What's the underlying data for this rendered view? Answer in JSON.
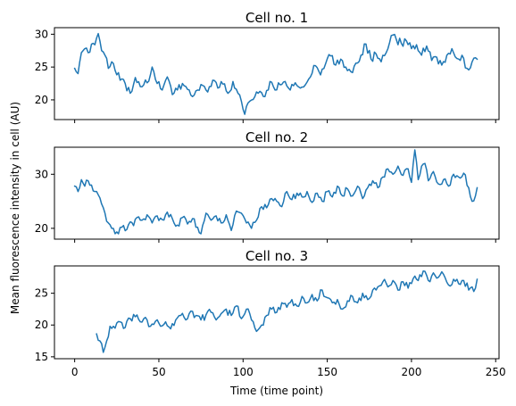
{
  "figure": {
    "xlabel": "Time (time point)",
    "ylabel": "Mean fluorescence intensity in cell (AU)",
    "series_color": "#1f77b4"
  },
  "chart_data": [
    {
      "type": "line",
      "title": "Cell no. 1",
      "xlim": [
        -12,
        252
      ],
      "ylim": [
        17,
        31
      ],
      "yticks": [
        20,
        25,
        30
      ],
      "xticks": [
        0,
        50,
        100,
        150,
        200,
        250
      ],
      "x_tick_labels_shown": false,
      "x_start": 0,
      "x_end": 239,
      "series": [
        {
          "name": "Cell no. 1",
          "keypoints": [
            [
              0,
              24.8
            ],
            [
              2,
              24.0
            ],
            [
              4,
              27.2
            ],
            [
              6,
              27.8
            ],
            [
              8,
              27.2
            ],
            [
              10,
              28.5
            ],
            [
              12,
              28.4
            ],
            [
              14,
              30.1
            ],
            [
              16,
              27.5
            ],
            [
              18,
              26.8
            ],
            [
              20,
              24.8
            ],
            [
              22,
              25.8
            ],
            [
              24,
              24.5
            ],
            [
              27,
              23.0
            ],
            [
              30,
              22.5
            ],
            [
              33,
              21.0
            ],
            [
              36,
              23.4
            ],
            [
              40,
              22.0
            ],
            [
              43,
              22.6
            ],
            [
              46,
              25.0
            ],
            [
              49,
              22.5
            ],
            [
              52,
              21.5
            ],
            [
              55,
              23.5
            ],
            [
              58,
              20.8
            ],
            [
              61,
              21.5
            ],
            [
              64,
              22.5
            ],
            [
              67,
              21.6
            ],
            [
              70,
              20.5
            ],
            [
              73,
              21.5
            ],
            [
              76,
              22.2
            ],
            [
              79,
              21.2
            ],
            [
              82,
              23.0
            ],
            [
              85,
              21.8
            ],
            [
              88,
              22.4
            ],
            [
              91,
              21.0
            ],
            [
              94,
              22.8
            ],
            [
              97,
              21.0
            ],
            [
              99,
              19.8
            ],
            [
              101,
              17.8
            ],
            [
              104,
              19.8
            ],
            [
              107,
              20.5
            ],
            [
              110,
              21.3
            ],
            [
              113,
              20.5
            ],
            [
              116,
              22.8
            ],
            [
              119,
              21.5
            ],
            [
              122,
              22.3
            ],
            [
              125,
              22.8
            ],
            [
              128,
              21.5
            ],
            [
              131,
              22.6
            ],
            [
              134,
              21.8
            ],
            [
              137,
              22.3
            ],
            [
              140,
              23.5
            ],
            [
              143,
              25.2
            ],
            [
              146,
              23.8
            ],
            [
              149,
              25.5
            ],
            [
              152,
              26.7
            ],
            [
              155,
              25.3
            ],
            [
              158,
              26.2
            ],
            [
              161,
              25.0
            ],
            [
              164,
              24.3
            ],
            [
              167,
              25.6
            ],
            [
              170,
              26.8
            ],
            [
              173,
              28.5
            ],
            [
              176,
              26.2
            ],
            [
              179,
              27.0
            ],
            [
              182,
              25.8
            ],
            [
              185,
              27.2
            ],
            [
              188,
              29.8
            ],
            [
              191,
              29.2
            ],
            [
              194,
              28.6
            ],
            [
              197,
              29.0
            ],
            [
              200,
              27.8
            ],
            [
              203,
              28.4
            ],
            [
              206,
              26.8
            ],
            [
              209,
              28.2
            ],
            [
              212,
              26.0
            ],
            [
              215,
              26.5
            ],
            [
              218,
              25.3
            ],
            [
              221,
              26.8
            ],
            [
              224,
              27.8
            ],
            [
              227,
              26.3
            ],
            [
              230,
              26.8
            ],
            [
              233,
              24.8
            ],
            [
              236,
              25.8
            ],
            [
              239,
              26.2
            ]
          ]
        }
      ]
    },
    {
      "type": "line",
      "title": "Cell no. 2",
      "xlim": [
        -12,
        252
      ],
      "ylim": [
        18,
        35
      ],
      "yticks": [
        20,
        30
      ],
      "xticks": [
        0,
        50,
        100,
        150,
        200,
        250
      ],
      "x_tick_labels_shown": false,
      "x_start": 0,
      "x_end": 239,
      "series": [
        {
          "name": "Cell no. 2",
          "keypoints": [
            [
              0,
              27.8
            ],
            [
              2,
              26.8
            ],
            [
              4,
              29.0
            ],
            [
              6,
              27.8
            ],
            [
              8,
              28.8
            ],
            [
              10,
              28.0
            ],
            [
              12,
              26.8
            ],
            [
              14,
              26.2
            ],
            [
              16,
              24.5
            ],
            [
              18,
              22.8
            ],
            [
              20,
              21.0
            ],
            [
              22,
              20.0
            ],
            [
              24,
              19.0
            ],
            [
              26,
              19.0
            ],
            [
              28,
              20.2
            ],
            [
              31,
              19.8
            ],
            [
              33,
              21.2
            ],
            [
              35,
              20.5
            ],
            [
              37,
              22.0
            ],
            [
              40,
              21.5
            ],
            [
              43,
              22.5
            ],
            [
              46,
              21.0
            ],
            [
              49,
              22.3
            ],
            [
              52,
              21.6
            ],
            [
              55,
              23.0
            ],
            [
              58,
              21.8
            ],
            [
              61,
              20.6
            ],
            [
              64,
              22.0
            ],
            [
              67,
              20.8
            ],
            [
              70,
              21.8
            ],
            [
              73,
              20.2
            ],
            [
              75,
              19.0
            ],
            [
              78,
              22.8
            ],
            [
              81,
              21.5
            ],
            [
              84,
              22.3
            ],
            [
              87,
              21.0
            ],
            [
              90,
              22.5
            ],
            [
              93,
              19.6
            ],
            [
              96,
              23.2
            ],
            [
              99,
              22.8
            ],
            [
              102,
              21.0
            ],
            [
              105,
              20.0
            ],
            [
              108,
              21.5
            ],
            [
              111,
              24.0
            ],
            [
              114,
              23.8
            ],
            [
              117,
              25.5
            ],
            [
              120,
              25.0
            ],
            [
              123,
              24.0
            ],
            [
              126,
              26.8
            ],
            [
              129,
              25.3
            ],
            [
              132,
              26.5
            ],
            [
              135,
              25.8
            ],
            [
              138,
              26.8
            ],
            [
              141,
              24.8
            ],
            [
              144,
              26.5
            ],
            [
              147,
              25.0
            ],
            [
              150,
              26.8
            ],
            [
              153,
              25.8
            ],
            [
              156,
              27.8
            ],
            [
              159,
              26.0
            ],
            [
              162,
              27.3
            ],
            [
              165,
              26.0
            ],
            [
              168,
              27.8
            ],
            [
              171,
              25.5
            ],
            [
              174,
              27.5
            ],
            [
              177,
              28.8
            ],
            [
              180,
              27.5
            ],
            [
              183,
              29.5
            ],
            [
              186,
              31.0
            ],
            [
              189,
              30.0
            ],
            [
              192,
              31.5
            ],
            [
              195,
              29.8
            ],
            [
              198,
              31.0
            ],
            [
              200,
              28.5
            ],
            [
              202,
              34.5
            ],
            [
              204,
              29.0
            ],
            [
              206,
              31.5
            ],
            [
              208,
              32.0
            ],
            [
              210,
              28.8
            ],
            [
              213,
              30.5
            ],
            [
              216,
              28.2
            ],
            [
              219,
              29.0
            ],
            [
              222,
              27.8
            ],
            [
              225,
              30.0
            ],
            [
              228,
              29.5
            ],
            [
              231,
              30.2
            ],
            [
              234,
              27.5
            ],
            [
              236,
              25.0
            ],
            [
              238,
              26.0
            ],
            [
              239,
              27.5
            ]
          ]
        }
      ]
    },
    {
      "type": "line",
      "title": "Cell no. 3",
      "xlim": [
        -12,
        252
      ],
      "ylim": [
        14.7,
        29.3
      ],
      "yticks": [
        15,
        20,
        25
      ],
      "xticks": [
        0,
        50,
        100,
        150,
        200,
        250
      ],
      "x_tick_labels_shown": true,
      "x_start": 13,
      "x_end": 239,
      "series": [
        {
          "name": "Cell no. 3",
          "keypoints": [
            [
              13,
              18.6
            ],
            [
              15,
              17.5
            ],
            [
              17,
              15.7
            ],
            [
              19,
              17.5
            ],
            [
              21,
              19.8
            ],
            [
              24,
              19.5
            ],
            [
              27,
              20.5
            ],
            [
              30,
              19.6
            ],
            [
              33,
              21.0
            ],
            [
              36,
              21.3
            ],
            [
              39,
              20.5
            ],
            [
              42,
              21.2
            ],
            [
              45,
              19.8
            ],
            [
              48,
              20.6
            ],
            [
              51,
              19.8
            ],
            [
              54,
              20.5
            ],
            [
              57,
              19.4
            ],
            [
              60,
              20.8
            ],
            [
              63,
              21.5
            ],
            [
              66,
              20.8
            ],
            [
              69,
              22.2
            ],
            [
              72,
              21.5
            ],
            [
              75,
              20.8
            ],
            [
              78,
              21.6
            ],
            [
              81,
              22.0
            ],
            [
              84,
              20.8
            ],
            [
              87,
              21.8
            ],
            [
              90,
              22.5
            ],
            [
              93,
              21.5
            ],
            [
              96,
              23.0
            ],
            [
              99,
              21.0
            ],
            [
              102,
              22.5
            ],
            [
              105,
              20.8
            ],
            [
              108,
              19.0
            ],
            [
              111,
              20.0
            ],
            [
              114,
              21.5
            ],
            [
              117,
              22.5
            ],
            [
              120,
              22.0
            ],
            [
              123,
              23.5
            ],
            [
              126,
              22.8
            ],
            [
              129,
              24.0
            ],
            [
              132,
              23.0
            ],
            [
              135,
              24.5
            ],
            [
              138,
              23.5
            ],
            [
              141,
              24.8
            ],
            [
              144,
              23.8
            ],
            [
              147,
              25.5
            ],
            [
              150,
              24.3
            ],
            [
              153,
              23.5
            ],
            [
              156,
              24.0
            ],
            [
              159,
              22.5
            ],
            [
              162,
              23.8
            ],
            [
              165,
              24.5
            ],
            [
              168,
              23.5
            ],
            [
              171,
              25.0
            ],
            [
              174,
              24.0
            ],
            [
              177,
              25.5
            ],
            [
              180,
              26.0
            ],
            [
              183,
              26.8
            ],
            [
              186,
              26.0
            ],
            [
              189,
              27.0
            ],
            [
              192,
              25.5
            ],
            [
              195,
              26.8
            ],
            [
              198,
              25.8
            ],
            [
              201,
              27.3
            ],
            [
              204,
              27.0
            ],
            [
              207,
              28.5
            ],
            [
              210,
              27.0
            ],
            [
              213,
              28.2
            ],
            [
              216,
              27.5
            ],
            [
              219,
              28.0
            ],
            [
              222,
              26.3
            ],
            [
              225,
              27.2
            ],
            [
              228,
              26.5
            ],
            [
              231,
              27.0
            ],
            [
              234,
              25.5
            ],
            [
              236,
              26.0
            ],
            [
              238,
              25.8
            ],
            [
              239,
              27.2
            ]
          ]
        }
      ]
    }
  ]
}
